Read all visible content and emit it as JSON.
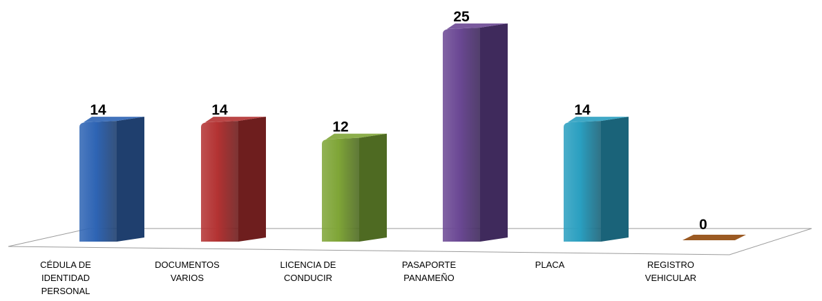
{
  "chart_data": {
    "type": "bar",
    "style": "3d-columns",
    "title": "",
    "xlabel": "",
    "ylabel": "",
    "ylim": [
      0,
      25
    ],
    "grid": false,
    "legend": "none",
    "categories": [
      "CÉDULA DE IDENTIDAD PERSONAL",
      "DOCUMENTOS VARIOS",
      "LICENCIA DE CONDUCIR",
      "PASAPORTE PANAMEÑO",
      "PLACA",
      "REGISTRO VEHICULAR"
    ],
    "category_lines": [
      [
        "CÉDULA DE",
        "IDENTIDAD",
        "PERSONAL"
      ],
      [
        "DOCUMENTOS",
        "VARIOS"
      ],
      [
        "LICENCIA DE",
        "CONDUCIR"
      ],
      [
        "PASAPORTE",
        "PANAMEÑO"
      ],
      [
        "PLACA"
      ],
      [
        "REGISTRO",
        "VEHICULAR"
      ]
    ],
    "values": [
      14,
      14,
      12,
      25,
      14,
      0
    ],
    "value_labels": [
      "14",
      "14",
      "12",
      "25",
      "14",
      "0"
    ],
    "colors": [
      "#2E64B4",
      "#B33232",
      "#7FA537",
      "#6B4894",
      "#2A9FC0",
      "#9B5A23"
    ],
    "side_colors": [
      "#1F3F6E",
      "#6E1E1E",
      "#4E6A22",
      "#3F2A5C",
      "#1A6379",
      "#6E3A12"
    ]
  }
}
